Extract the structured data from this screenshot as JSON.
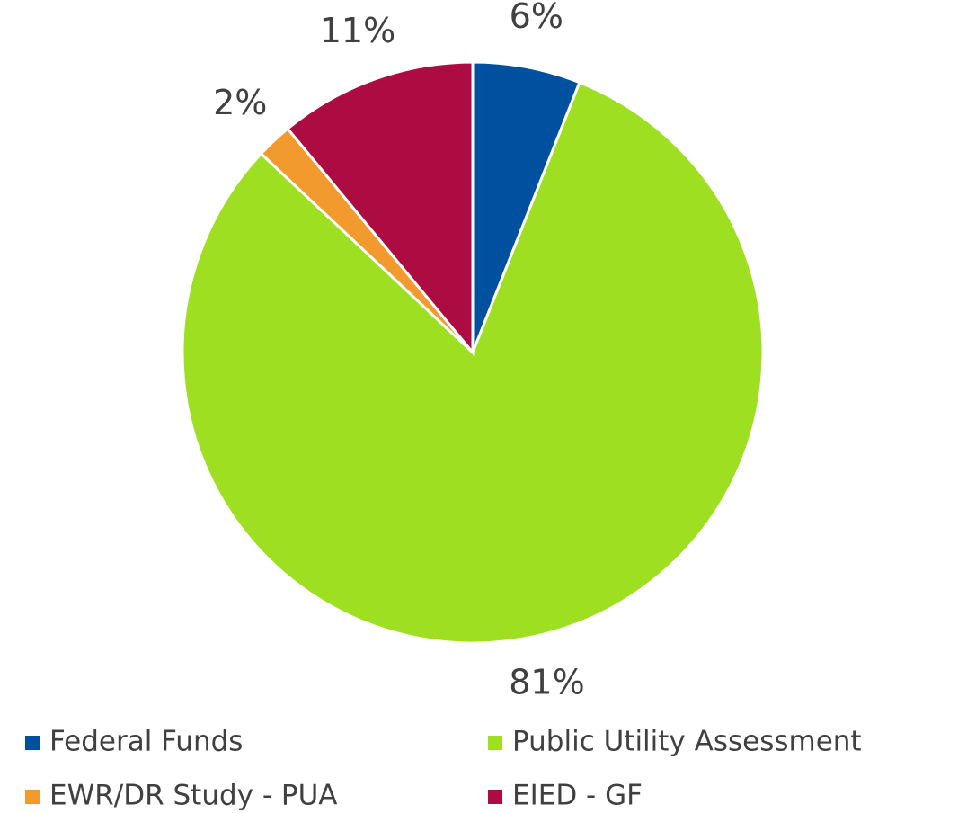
{
  "chart_data": {
    "type": "pie",
    "categories": [
      "Federal Funds",
      "Public Utility Assessment",
      "EWR/DR Study - PUA",
      "EIED - GF"
    ],
    "values": [
      6,
      81,
      2,
      11
    ],
    "value_labels": [
      "6%",
      "81%",
      "2%",
      "11%"
    ],
    "colors": [
      "#0050a0",
      "#9edf22",
      "#f29a2e",
      "#ad0c42"
    ],
    "legend": "bottom"
  }
}
